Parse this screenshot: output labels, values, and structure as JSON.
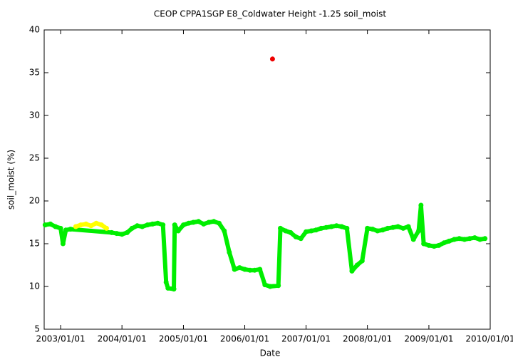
{
  "chart_data": {
    "type": "scatter",
    "title": "CEOP CPPA1SGP E8_Coldwater Height -1.25 soil_moist",
    "x_label": "Date",
    "y_label": "soil_moist (%)",
    "xlim": [
      "2002/09/25",
      "2010/01/01"
    ],
    "xticks": [
      "2003/01/01",
      "2004/01/01",
      "2005/01/01",
      "2006/01/01",
      "2007/01/01",
      "2008/01/01",
      "2009/01/01",
      "2010/01/01"
    ],
    "ylim": [
      5,
      40
    ],
    "yticks": [
      5,
      10,
      15,
      20,
      25,
      30,
      35,
      40
    ],
    "series": [
      {
        "color": "#00ee00",
        "x": [
          "2002/10/01",
          "2002/11/01",
          "2002/12/01",
          "2003/01/01",
          "2003/01/15",
          "2003/02/01",
          "2003/03/01",
          "2003/11/01",
          "2003/12/01",
          "2004/01/01",
          "2004/02/01",
          "2004/03/01",
          "2004/04/01",
          "2004/05/01",
          "2004/06/01",
          "2004/07/01",
          "2004/08/01",
          "2004/09/01",
          "2004/09/20",
          "2004/10/01",
          "2004/11/05",
          "2004/11/10",
          "2004/12/01",
          "2005/01/01",
          "2005/02/01",
          "2005/03/01",
          "2005/04/01",
          "2005/05/01",
          "2005/06/01",
          "2005/07/01",
          "2005/08/01",
          "2005/09/01",
          "2005/10/01",
          "2005/11/01",
          "2005/12/01",
          "2006/01/01",
          "2006/02/01",
          "2006/03/01",
          "2006/04/01",
          "2006/05/01",
          "2006/06/01",
          "2006/07/20",
          "2006/08/01",
          "2006/09/01",
          "2006/10/01",
          "2006/11/01",
          "2006/12/01",
          "2007/01/01",
          "2007/02/01",
          "2007/03/01",
          "2007/04/01",
          "2007/05/01",
          "2007/06/01",
          "2007/07/01",
          "2007/08/01",
          "2007/09/01",
          "2007/10/01",
          "2007/11/01",
          "2007/12/01",
          "2008/01/01",
          "2008/02/01",
          "2008/03/01",
          "2008/04/01",
          "2008/05/01",
          "2008/06/01",
          "2008/07/01",
          "2008/08/01",
          "2008/09/01",
          "2008/10/01",
          "2008/11/01",
          "2008/11/15",
          "2008/12/01",
          "2009/01/01",
          "2009/02/01",
          "2009/03/01",
          "2009/04/01",
          "2009/05/01",
          "2009/06/01",
          "2009/07/01",
          "2009/08/01",
          "2009/09/01",
          "2009/10/01",
          "2009/11/01",
          "2009/12/01"
        ],
        "values": [
          17.2,
          17.3,
          17,
          16.8,
          15,
          16.6,
          16.7,
          16.3,
          16.2,
          16.1,
          16.3,
          16.8,
          17.1,
          17,
          17.2,
          17.3,
          17.4,
          17.2,
          10.5,
          9.8,
          9.7,
          17.2,
          16.5,
          17.2,
          17.4,
          17.5,
          17.6,
          17.3,
          17.5,
          17.6,
          17.4,
          16.5,
          14,
          12,
          12.2,
          12,
          11.9,
          11.9,
          12,
          10.2,
          10,
          10.1,
          16.8,
          16.5,
          16.3,
          15.8,
          15.6,
          16.4,
          16.5,
          16.6,
          16.8,
          16.9,
          17,
          17.1,
          17,
          16.8,
          11.8,
          12.5,
          13,
          16.8,
          16.7,
          16.5,
          16.6,
          16.8,
          16.9,
          17,
          16.8,
          17,
          15.5,
          16.5,
          19.5,
          15,
          14.8,
          14.7,
          14.8,
          15.1,
          15.3,
          15.5,
          15.6,
          15.5,
          15.6,
          15.7,
          15.5,
          15.6
        ]
      },
      {
        "color": "#ffff00",
        "x": [
          "2003/04/01",
          "2003/05/01",
          "2003/06/01",
          "2003/07/01",
          "2003/08/01",
          "2003/09/01",
          "2003/10/01"
        ],
        "values": [
          17,
          17.2,
          17.3,
          17.1,
          17.4,
          17.2,
          16.8
        ]
      },
      {
        "color": "#ee0000",
        "x": [
          "2006/06/15"
        ],
        "values": [
          36.6
        ]
      }
    ]
  }
}
